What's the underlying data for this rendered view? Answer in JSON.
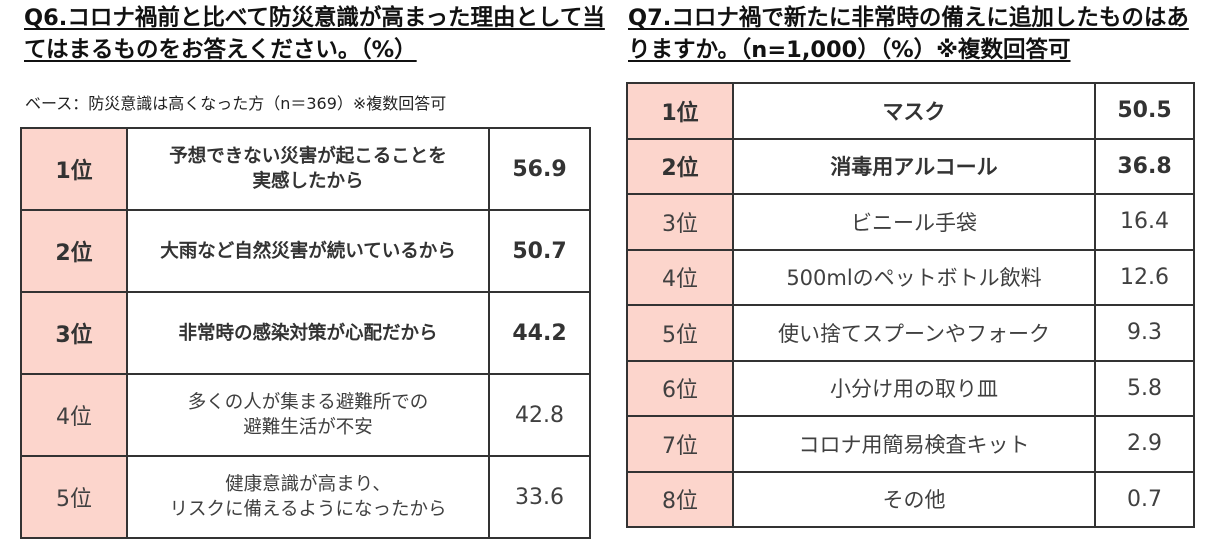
{
  "q6": {
    "title": "Q6.コロナ禍前と比べて防災意識が高まった理由として当てはまるものをお答えください。（%）",
    "base": "ベース：防災意識は高くなった方（n＝369）※複数回答可",
    "rows": [
      {
        "rank": "1位",
        "item_lines": [
          "予想できない災害が起こることを",
          "実感したから"
        ],
        "value": "56.9",
        "bold": true
      },
      {
        "rank": "2位",
        "item_lines": [
          "大雨など自然災害が続いているから",
          ""
        ],
        "value": "50.7",
        "bold": true
      },
      {
        "rank": "3位",
        "item_lines": [
          "非常時の感染対策が心配だから",
          ""
        ],
        "value": "44.2",
        "bold": true
      },
      {
        "rank": "4位",
        "item_lines": [
          "多くの人が集まる避難所での",
          "避難生活が不安"
        ],
        "value": "42.8",
        "bold": false
      },
      {
        "rank": "5位",
        "item_lines": [
          "健康意識が高まり、",
          "リスクに備えるようになったから"
        ],
        "value": "33.6",
        "bold": false
      }
    ]
  },
  "q7": {
    "title": "Q7.コロナ禍で新たに非常時の備えに追加したものはありますか。（n=1,000）（%）※複数回答可",
    "rows": [
      {
        "rank": "1位",
        "item": "マスク",
        "value": "50.5",
        "bold": true
      },
      {
        "rank": "2位",
        "item": "消毒用アルコール",
        "value": "36.8",
        "bold": true
      },
      {
        "rank": "3位",
        "item": "ビニール手袋",
        "value": "16.4",
        "bold": false
      },
      {
        "rank": "4位",
        "item": "500mlのペットボトル飲料",
        "value": "12.6",
        "bold": false
      },
      {
        "rank": "5位",
        "item": "使い捨てスプーンやフォーク",
        "value": "9.3",
        "bold": false
      },
      {
        "rank": "6位",
        "item": "小分け用の取り皿",
        "value": "5.8",
        "bold": false
      },
      {
        "rank": "7位",
        "item": "コロナ用簡易検査キット",
        "value": "2.9",
        "bold": false
      },
      {
        "rank": "8位",
        "item": "その他",
        "value": "0.7",
        "bold": false
      }
    ]
  },
  "colors": {
    "rank_cell_bg": "#fcd5cc",
    "border": "#333333",
    "text": "#404040"
  }
}
